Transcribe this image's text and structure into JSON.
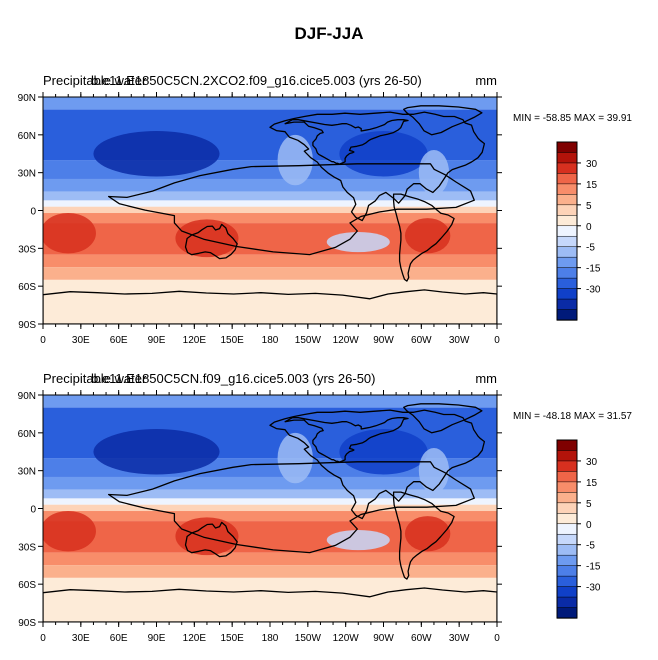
{
  "title": "DJF-JJA",
  "units": "mm",
  "colors": {
    "ocean": "#5d87e8",
    "coast": "#000000",
    "frame": "#000000"
  },
  "colorbar": {
    "labels": [
      "30",
      "15",
      "5",
      "0",
      "-5",
      "-15",
      "-30"
    ],
    "colors": [
      "#7f0000",
      "#b3130a",
      "#d7301f",
      "#ef6548",
      "#f88d6a",
      "#fbb08c",
      "#fdd3b8",
      "#fdebd8",
      "#eef4ff",
      "#c6d8fb",
      "#9dbcf5",
      "#6e9bf0",
      "#4d7fe8",
      "#2a5fdc",
      "#1040c8",
      "#0a2ba6",
      "#001a7a"
    ]
  },
  "chart_data": [
    {
      "type": "heatmap",
      "title_left": "Precipitable water",
      "title_overlay": "b.e11.E1850C5CN.2XCO2.f09_g16.cice5.003 (yrs 26-50)",
      "units": "mm",
      "stats": "MIN = -58.85 MAX =  39.91",
      "x_ticks": [
        "0",
        "30E",
        "60E",
        "90E",
        "120E",
        "150E",
        "180",
        "150W",
        "120W",
        "90W",
        "60W",
        "30W",
        "0"
      ],
      "y_ticks": [
        "90N",
        "60N",
        "30N",
        "0",
        "30S",
        "60S",
        "90S"
      ],
      "xlim": [
        0,
        360
      ],
      "ylim": [
        -90,
        90
      ]
    },
    {
      "type": "heatmap",
      "title_left": "Precipitable water",
      "title_overlay": "b.e11.E1850C5CN.f09_g16.cice5.003 (yrs 26-50)",
      "units": "mm",
      "stats": "MIN = -48.18 MAX =  31.57",
      "x_ticks": [
        "0",
        "30E",
        "60E",
        "90E",
        "120E",
        "150E",
        "180",
        "150W",
        "120W",
        "90W",
        "60W",
        "30W",
        "0"
      ],
      "y_ticks": [
        "90N",
        "60N",
        "30N",
        "0",
        "30S",
        "60S",
        "90S"
      ],
      "xlim": [
        0,
        360
      ],
      "ylim": [
        -90,
        90
      ]
    }
  ]
}
